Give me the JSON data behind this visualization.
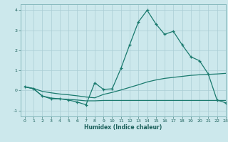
{
  "title": "",
  "xlabel": "Humidex (Indice chaleur)",
  "ylabel": "",
  "bg_color": "#cce8ec",
  "line_color": "#1a7a6e",
  "grid_color": "#aacdd4",
  "xlim": [
    -0.5,
    23
  ],
  "ylim": [
    -1.3,
    4.3
  ],
  "xticks": [
    0,
    1,
    2,
    3,
    4,
    5,
    6,
    7,
    8,
    9,
    10,
    11,
    12,
    13,
    14,
    15,
    16,
    17,
    18,
    19,
    20,
    21,
    22,
    23
  ],
  "yticks": [
    -1,
    0,
    1,
    2,
    3,
    4
  ],
  "line1_x": [
    0,
    1,
    2,
    3,
    4,
    5,
    6,
    7,
    8,
    9,
    10,
    11,
    12,
    13,
    14,
    15,
    16,
    17,
    18,
    19,
    20,
    21,
    22,
    23
  ],
  "line1_y": [
    0.18,
    0.08,
    -0.28,
    -0.42,
    -0.42,
    -0.48,
    -0.58,
    -0.72,
    0.38,
    0.05,
    0.08,
    1.1,
    2.28,
    3.42,
    4.0,
    3.32,
    2.8,
    2.95,
    2.28,
    1.68,
    1.48,
    0.82,
    -0.48,
    -0.62
  ],
  "line2_x": [
    0,
    1,
    2,
    3,
    4,
    5,
    6,
    7,
    8,
    9,
    10,
    11,
    12,
    13,
    14,
    15,
    16,
    17,
    18,
    19,
    20,
    21,
    22,
    23
  ],
  "line2_y": [
    0.18,
    0.08,
    -0.28,
    -0.38,
    -0.42,
    -0.45,
    -0.48,
    -0.52,
    -0.52,
    -0.5,
    -0.5,
    -0.5,
    -0.5,
    -0.5,
    -0.5,
    -0.5,
    -0.5,
    -0.5,
    -0.5,
    -0.5,
    -0.5,
    -0.5,
    -0.5,
    -0.5
  ],
  "line3_x": [
    0,
    1,
    2,
    3,
    4,
    5,
    6,
    7,
    8,
    9,
    10,
    11,
    12,
    13,
    14,
    15,
    16,
    17,
    18,
    19,
    20,
    21,
    22,
    23
  ],
  "line3_y": [
    0.18,
    0.1,
    -0.05,
    -0.12,
    -0.18,
    -0.22,
    -0.27,
    -0.33,
    -0.37,
    -0.2,
    -0.1,
    0.02,
    0.15,
    0.28,
    0.42,
    0.52,
    0.6,
    0.65,
    0.7,
    0.75,
    0.78,
    0.8,
    0.82,
    0.85
  ],
  "xlabel_fontsize": 5.5,
  "tick_fontsize": 4.5,
  "linewidth": 0.9,
  "marker_size": 3.5
}
